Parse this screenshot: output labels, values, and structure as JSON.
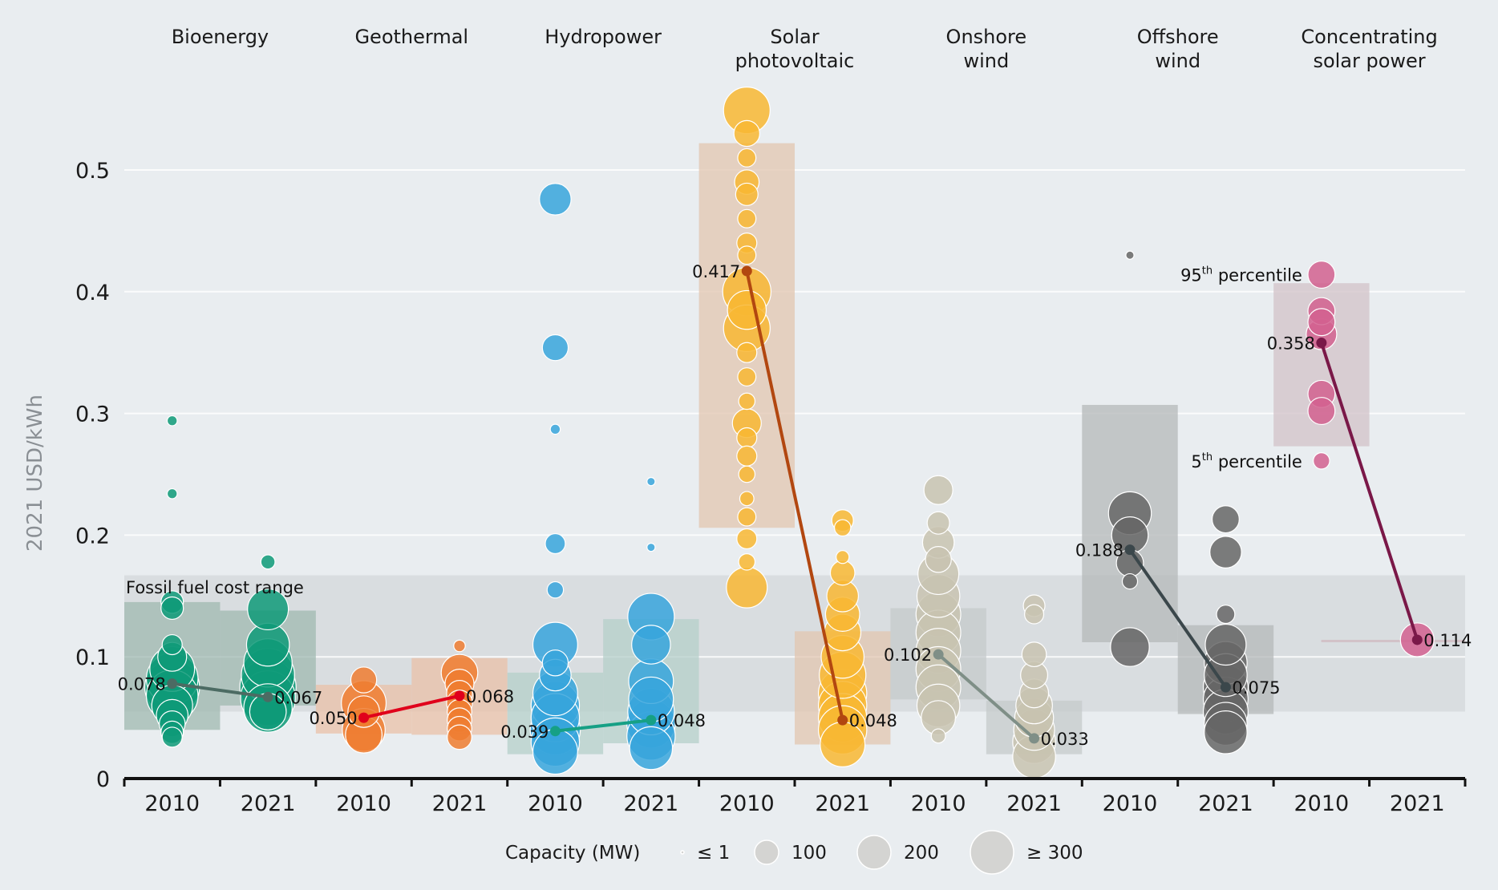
{
  "chart_data": {
    "type": "scatter",
    "title": "",
    "ylabel": "2021 USD/kWh",
    "ylim": [
      0,
      0.55
    ],
    "yticks": [
      "0",
      "0.1",
      "0.2",
      "0.3",
      "0.4",
      "0.5"
    ],
    "ytick_values": [
      0,
      0.1,
      0.2,
      0.3,
      0.4,
      0.5
    ],
    "grid": true,
    "fossil_fuel_range": {
      "label": "Fossil fuel cost range",
      "low": 0.055,
      "high": 0.167
    },
    "percentile_labels": {
      "p95": "95",
      "p5": "5",
      "suffix": "th",
      "word": "percentile"
    },
    "legend": {
      "title": "Capacity (MW)",
      "placement": "bottom",
      "entries": [
        {
          "label": "≤ 1",
          "mw": 1
        },
        {
          "label": "100",
          "mw": 100
        },
        {
          "label": "200",
          "mw": 200
        },
        {
          "label": "≥ 300",
          "mw": 300
        }
      ]
    },
    "technologies": [
      {
        "name": "Bioenergy",
        "label_lines": [
          "Bioenergy"
        ],
        "color": "#0e9a78",
        "box_color": "#9fb8b0",
        "line_color": "#4c6b63",
        "years": [
          {
            "year": "2010",
            "weighted_avg": 0.078,
            "avg_label": "0.078",
            "p5": 0.04,
            "p95": 0.145,
            "points": [
              [
                0.294,
                3
              ],
              [
                0.234,
                3
              ],
              [
                0.145,
                15
              ],
              [
                0.14,
                15
              ],
              [
                0.11,
                12
              ],
              [
                0.1,
                25
              ],
              [
                0.09,
                60
              ],
              [
                0.082,
                80
              ],
              [
                0.075,
                90
              ],
              [
                0.068,
                80
              ],
              [
                0.06,
                50
              ],
              [
                0.052,
                30
              ],
              [
                0.045,
                20
              ],
              [
                0.038,
                15
              ],
              [
                0.034,
                12
              ]
            ]
          },
          {
            "year": "2021",
            "weighted_avg": 0.067,
            "avg_label": "0.067",
            "p5": 0.06,
            "p95": 0.138,
            "points": [
              [
                0.178,
                6
              ],
              [
                0.139,
                50
              ],
              [
                0.11,
                55
              ],
              [
                0.095,
                70
              ],
              [
                0.085,
                85
              ],
              [
                0.075,
                95
              ],
              [
                0.066,
                90
              ],
              [
                0.058,
                70
              ],
              [
                0.055,
                40
              ]
            ]
          }
        ]
      },
      {
        "name": "Geothermal",
        "label_lines": [
          "Geothermal"
        ],
        "color": "#ef7d30",
        "box_color": "#eac0a8",
        "line_color": "#e0001b",
        "years": [
          {
            "year": "2010",
            "weighted_avg": 0.05,
            "avg_label": "0.050",
            "p5": 0.037,
            "p95": 0.077,
            "points": [
              [
                0.081,
                20
              ],
              [
                0.062,
                60
              ],
              [
                0.055,
                30
              ],
              [
                0.04,
                55
              ],
              [
                0.036,
                40
              ]
            ]
          },
          {
            "year": "2021",
            "weighted_avg": 0.068,
            "avg_label": "0.068",
            "p5": 0.036,
            "p95": 0.099,
            "points": [
              [
                0.109,
                4
              ],
              [
                0.087,
                40
              ],
              [
                0.078,
                25
              ],
              [
                0.07,
                20
              ],
              [
                0.062,
                20
              ],
              [
                0.055,
                18
              ],
              [
                0.048,
                18
              ],
              [
                0.041,
                18
              ],
              [
                0.034,
                18
              ]
            ]
          }
        ]
      },
      {
        "name": "Hydropower",
        "label_lines": [
          "Hydropower"
        ],
        "color": "#37a5dc",
        "box_color": "#b4cfca",
        "line_color": "#16a085",
        "years": [
          {
            "year": "2010",
            "weighted_avg": 0.039,
            "avg_label": "0.039",
            "p5": 0.02,
            "p95": 0.087,
            "points": [
              [
                0.476,
                30
              ],
              [
                0.354,
                20
              ],
              [
                0.287,
                3
              ],
              [
                0.193,
                12
              ],
              [
                0.155,
                8
              ],
              [
                0.11,
                60
              ],
              [
                0.095,
                20
              ],
              [
                0.085,
                30
              ],
              [
                0.07,
                60
              ],
              [
                0.06,
                70
              ],
              [
                0.05,
                70
              ],
              [
                0.04,
                75
              ],
              [
                0.03,
                70
              ],
              [
                0.022,
                60
              ]
            ]
          },
          {
            "year": "2021",
            "weighted_avg": 0.048,
            "avg_label": "0.048",
            "p5": 0.029,
            "p95": 0.131,
            "points": [
              [
                0.244,
                2
              ],
              [
                0.19,
                2
              ],
              [
                0.133,
                65
              ],
              [
                0.11,
                45
              ],
              [
                0.08,
                60
              ],
              [
                0.065,
                60
              ],
              [
                0.055,
                65
              ],
              [
                0.045,
                70
              ],
              [
                0.035,
                70
              ],
              [
                0.025,
                55
              ]
            ]
          }
        ]
      },
      {
        "name": "Solar photovoltaic",
        "label_lines": [
          "Solar",
          "photovoltaic"
        ],
        "color": "#f8b732",
        "box_color": "#e2c6b0",
        "line_color": "#b24710",
        "years": [
          {
            "year": "2010",
            "weighted_avg": 0.417,
            "avg_label": "0.417",
            "p5": 0.206,
            "p95": 0.522,
            "points": [
              [
                0.549,
                65
              ],
              [
                0.53,
                20
              ],
              [
                0.51,
                10
              ],
              [
                0.49,
                18
              ],
              [
                0.48,
                15
              ],
              [
                0.46,
                10
              ],
              [
                0.44,
                12
              ],
              [
                0.43,
                10
              ],
              [
                0.4,
                70
              ],
              [
                0.385,
                45
              ],
              [
                0.37,
                65
              ],
              [
                0.35,
                12
              ],
              [
                0.33,
                10
              ],
              [
                0.31,
                8
              ],
              [
                0.292,
                25
              ],
              [
                0.28,
                12
              ],
              [
                0.265,
                12
              ],
              [
                0.25,
                8
              ],
              [
                0.23,
                6
              ],
              [
                0.215,
                10
              ],
              [
                0.197,
                12
              ],
              [
                0.178,
                8
              ],
              [
                0.157,
                50
              ]
            ]
          },
          {
            "year": "2021",
            "weighted_avg": 0.048,
            "avg_label": "0.048",
            "p5": 0.028,
            "p95": 0.121,
            "points": [
              [
                0.212,
                14
              ],
              [
                0.206,
                8
              ],
              [
                0.182,
                5
              ],
              [
                0.169,
                18
              ],
              [
                0.15,
                30
              ],
              [
                0.135,
                35
              ],
              [
                0.12,
                40
              ],
              [
                0.1,
                55
              ],
              [
                0.085,
                65
              ],
              [
                0.07,
                70
              ],
              [
                0.06,
                70
              ],
              [
                0.05,
                70
              ],
              [
                0.04,
                70
              ],
              [
                0.028,
                60
              ]
            ]
          }
        ]
      },
      {
        "name": "Onshore wind",
        "label_lines": [
          "Onshore",
          "wind"
        ],
        "color": "#c8c3b0",
        "box_color": "#c4c9cb",
        "line_color": "#7f8f87",
        "years": [
          {
            "year": "2010",
            "weighted_avg": 0.102,
            "avg_label": "0.102",
            "p5": 0.065,
            "p95": 0.14,
            "points": [
              [
                0.237,
                25
              ],
              [
                0.21,
                15
              ],
              [
                0.194,
                30
              ],
              [
                0.18,
                20
              ],
              [
                0.168,
                50
              ],
              [
                0.15,
                55
              ],
              [
                0.135,
                60
              ],
              [
                0.12,
                60
              ],
              [
                0.105,
                60
              ],
              [
                0.09,
                60
              ],
              [
                0.075,
                60
              ],
              [
                0.06,
                55
              ],
              [
                0.05,
                35
              ],
              [
                0.035,
                6
              ]
            ]
          },
          {
            "year": "2021",
            "weighted_avg": 0.033,
            "avg_label": "0.033",
            "p5": 0.02,
            "p95": 0.064,
            "points": [
              [
                0.142,
                14
              ],
              [
                0.135,
                11
              ],
              [
                0.102,
                18
              ],
              [
                0.085,
                22
              ],
              [
                0.07,
                25
              ],
              [
                0.06,
                40
              ],
              [
                0.05,
                45
              ],
              [
                0.04,
                50
              ],
              [
                0.03,
                55
              ],
              [
                0.018,
                55
              ]
            ]
          }
        ]
      },
      {
        "name": "Offshore wind",
        "label_lines": [
          "Offshore",
          "wind"
        ],
        "color": "#666666",
        "box_color": "#b4b8ba",
        "line_color": "#3b474b",
        "years": [
          {
            "year": "2010",
            "weighted_avg": 0.188,
            "avg_label": "0.188",
            "p5": 0.112,
            "p95": 0.307,
            "points": [
              [
                0.43,
                2
              ],
              [
                0.218,
                55
              ],
              [
                0.2,
                40
              ],
              [
                0.177,
                22
              ],
              [
                0.162,
                7
              ],
              [
                0.108,
                45
              ]
            ]
          },
          {
            "year": "2021",
            "weighted_avg": 0.075,
            "avg_label": "0.075",
            "p5": 0.053,
            "p95": 0.126,
            "points": [
              [
                0.213,
                22
              ],
              [
                0.186,
                30
              ],
              [
                0.135,
                10
              ],
              [
                0.11,
                50
              ],
              [
                0.095,
                55
              ],
              [
                0.085,
                55
              ],
              [
                0.075,
                60
              ],
              [
                0.065,
                60
              ],
              [
                0.055,
                60
              ],
              [
                0.045,
                55
              ],
              [
                0.038,
                55
              ]
            ]
          }
        ]
      },
      {
        "name": "Concentrating solar power",
        "label_lines": [
          "Concentrating",
          "solar power"
        ],
        "color": "#d2608f",
        "box_color": "#d2c2c8",
        "line_color": "#7a1848",
        "years": [
          {
            "year": "2010",
            "weighted_avg": 0.358,
            "avg_label": "0.358",
            "p5": 0.273,
            "p95": 0.407,
            "points": [
              [
                0.414,
                22
              ],
              [
                0.384,
                22
              ],
              [
                0.375,
                22
              ],
              [
                0.365,
                28
              ],
              [
                0.316,
                22
              ],
              [
                0.302,
                22
              ],
              [
                0.261,
                8
              ]
            ]
          },
          {
            "year": "2021",
            "weighted_avg": 0.114,
            "avg_label": "0.114",
            "p5": 0.113,
            "p95": 0.115,
            "points": [
              [
                0.114,
                34
              ]
            ]
          }
        ]
      }
    ]
  }
}
